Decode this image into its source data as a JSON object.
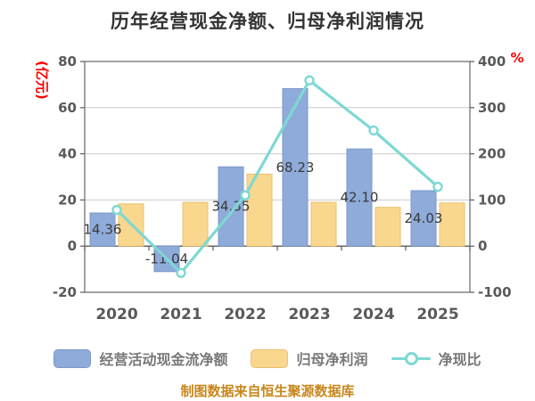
{
  "title": "历年经营现金净额、归母净利润情况",
  "footer": "制图数据来自恒生聚源数据库",
  "colors": {
    "bar_cash": "#8EABD9",
    "bar_cash_border": "#7B97C9",
    "bar_profit": "#FAD78E",
    "bar_profit_border": "#E9C070",
    "line_ratio": "#7ED8D3",
    "axis_text": "#595959",
    "axis_unit_red": "#FF0000",
    "grid": "#CBCBCB",
    "spine": "#666666",
    "value_label": "#3A3A3A"
  },
  "chart_data": {
    "type": "bar",
    "title": "历年经营现金净额、归母净利润情况",
    "categories": [
      "2020",
      "2021",
      "2022",
      "2023",
      "2024",
      "2025"
    ],
    "series": [
      {
        "name": "经营活动现金流净额",
        "type": "bar",
        "axis": "left",
        "color": "#8EABD9",
        "values": [
          14.36,
          -11.04,
          34.35,
          68.23,
          42.1,
          24.03
        ],
        "labels": [
          "14.36",
          "-11.04",
          "34.35",
          "68.23",
          "42.10",
          "24.03"
        ]
      },
      {
        "name": "归母净利润",
        "type": "bar",
        "axis": "left",
        "color": "#FAD78E",
        "values": [
          18.3,
          19.0,
          31.2,
          19.0,
          16.8,
          18.7
        ],
        "labels": [
          "",
          "",
          "",
          "",
          "",
          ""
        ]
      },
      {
        "name": "净现比",
        "type": "line",
        "axis": "right",
        "color": "#7ED8D3",
        "values": [
          78.5,
          -58.1,
          110.1,
          359.1,
          250.6,
          128.5
        ]
      }
    ],
    "left_axis": {
      "title": "(亿元)",
      "min": -20,
      "max": 80,
      "ticks": [
        80,
        60,
        40,
        20,
        0,
        -20
      ]
    },
    "right_axis": {
      "title": "%",
      "min": -100,
      "max": 400,
      "ticks": [
        400,
        300,
        200,
        100,
        0,
        -100
      ]
    },
    "grid": true,
    "legend_position": "bottom"
  },
  "legend": {
    "items": [
      {
        "label": "经营活动现金流净额",
        "swatch": "bar",
        "color": "#8EABD9"
      },
      {
        "label": "归母净利润",
        "swatch": "bar",
        "color": "#FAD78E"
      },
      {
        "label": "净现比",
        "swatch": "line-marker",
        "color": "#7ED8D3"
      }
    ]
  }
}
